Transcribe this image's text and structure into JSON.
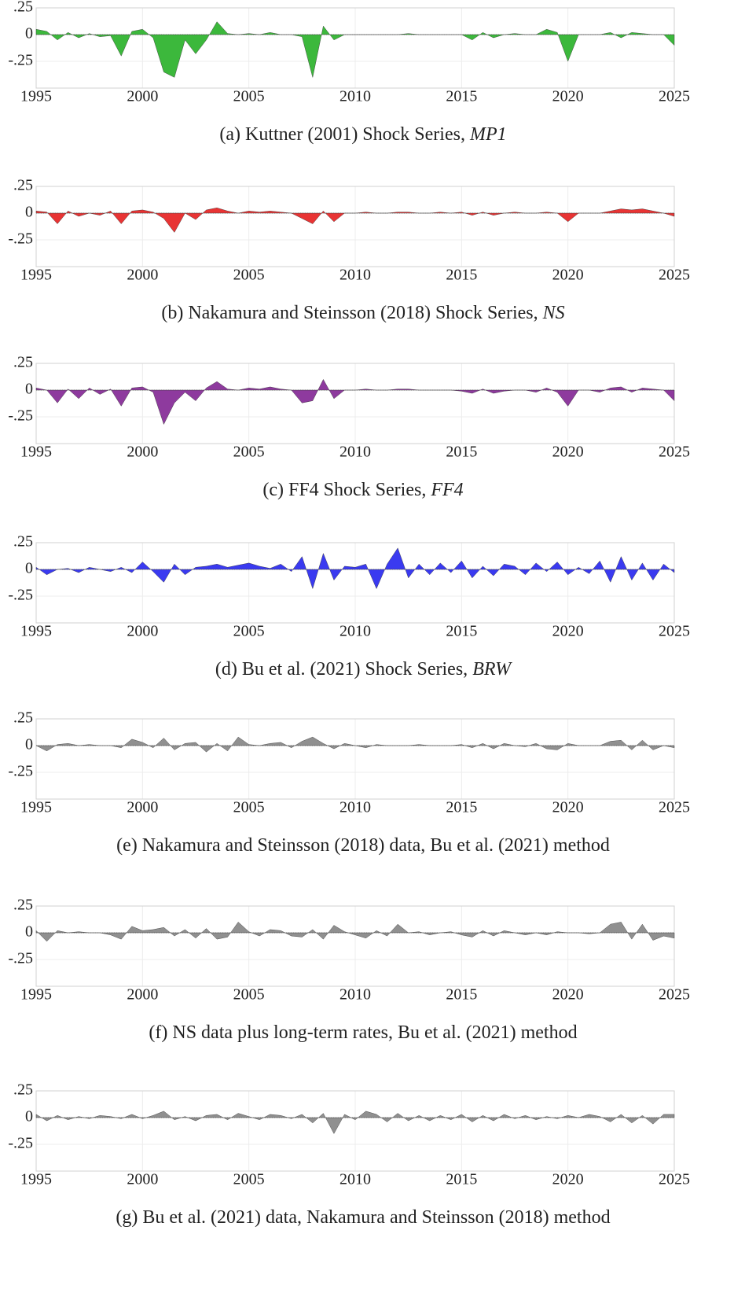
{
  "chart_data": [
    {
      "type": "area",
      "title": "(a) Kuttner (2001) Shock Series, ",
      "title_math": "MP1",
      "color": "#3cb83c",
      "grid": true,
      "xlim": [
        1995,
        2025
      ],
      "xticks": [
        1995,
        2000,
        2005,
        2010,
        2015,
        2020,
        2025
      ],
      "ylim": [
        -0.5,
        0.25
      ],
      "yticks": [
        {
          "value": 0.25,
          "label": ".25"
        },
        0,
        {
          "value": -0.25,
          "label": "-.25"
        }
      ],
      "x": [
        1995,
        1995.5,
        1996,
        1996.5,
        1997,
        1997.5,
        1998,
        1998.5,
        1999,
        1999.5,
        2000,
        2000.5,
        2001,
        2001.5,
        2002,
        2002.5,
        2003,
        2003.5,
        2004,
        2004.5,
        2005,
        2005.5,
        2006,
        2006.5,
        2007,
        2007.5,
        2008,
        2008.5,
        2009,
        2009.5,
        2010,
        2010.5,
        2011,
        2011.5,
        2012,
        2012.5,
        2013,
        2013.5,
        2014,
        2014.5,
        2015,
        2015.5,
        2016,
        2016.5,
        2017,
        2017.5,
        2018,
        2018.5,
        2019,
        2019.5,
        2020,
        2020.5,
        2021,
        2021.5,
        2022,
        2022.5,
        2023,
        2023.5,
        2024,
        2024.5,
        2025
      ],
      "values": [
        0.05,
        0.03,
        -0.05,
        0.02,
        -0.03,
        0.01,
        -0.02,
        -0.01,
        -0.2,
        0.03,
        0.05,
        -0.03,
        -0.35,
        -0.4,
        -0.05,
        -0.18,
        -0.05,
        0.12,
        0.01,
        0.0,
        0.01,
        0.0,
        0.02,
        0.0,
        0.0,
        -0.02,
        -0.4,
        0.08,
        -0.05,
        0.0,
        0.0,
        0.0,
        0.0,
        0.0,
        0.0,
        0.01,
        0.0,
        0.0,
        0.0,
        0.0,
        0.0,
        -0.05,
        0.02,
        -0.03,
        0.0,
        0.01,
        0.0,
        0.0,
        0.05,
        0.02,
        -0.25,
        0.0,
        0.0,
        0.0,
        0.02,
        -0.03,
        0.02,
        0.01,
        0.0,
        0.0,
        -0.1
      ]
    },
    {
      "type": "area",
      "title": "(b) Nakamura and Steinsson (2018) Shock Series, ",
      "title_math": "NS",
      "color": "#e83434",
      "grid": true,
      "xlim": [
        1995,
        2025
      ],
      "xticks": [
        1995,
        2000,
        2005,
        2010,
        2015,
        2020,
        2025
      ],
      "ylim": [
        -0.5,
        0.25
      ],
      "yticks": [
        {
          "value": 0.25,
          "label": ".25"
        },
        0,
        {
          "value": -0.25,
          "label": "-.25"
        }
      ],
      "x": [
        1995,
        1995.5,
        1996,
        1996.5,
        1997,
        1997.5,
        1998,
        1998.5,
        1999,
        1999.5,
        2000,
        2000.5,
        2001,
        2001.5,
        2002,
        2002.5,
        2003,
        2003.5,
        2004,
        2004.5,
        2005,
        2005.5,
        2006,
        2006.5,
        2007,
        2007.5,
        2008,
        2008.5,
        2009,
        2009.5,
        2010,
        2010.5,
        2011,
        2011.5,
        2012,
        2012.5,
        2013,
        2013.5,
        2014,
        2014.5,
        2015,
        2015.5,
        2016,
        2016.5,
        2017,
        2017.5,
        2018,
        2018.5,
        2019,
        2019.5,
        2020,
        2020.5,
        2021,
        2021.5,
        2022,
        2022.5,
        2023,
        2023.5,
        2024,
        2024.5,
        2025
      ],
      "values": [
        0.02,
        0.01,
        -0.1,
        0.02,
        -0.03,
        0.0,
        -0.02,
        0.02,
        -0.1,
        0.02,
        0.03,
        0.01,
        -0.05,
        -0.18,
        0.0,
        -0.06,
        0.03,
        0.05,
        0.02,
        0.0,
        0.02,
        0.01,
        0.02,
        0.01,
        0.0,
        -0.05,
        -0.1,
        0.02,
        -0.08,
        0.0,
        0.0,
        0.01,
        0.0,
        0.0,
        0.01,
        0.01,
        0.0,
        0.0,
        0.01,
        0.0,
        0.01,
        -0.02,
        0.01,
        -0.02,
        0.0,
        0.01,
        0.0,
        0.0,
        0.01,
        0.0,
        -0.08,
        0.0,
        0.0,
        0.0,
        0.02,
        0.04,
        0.03,
        0.04,
        0.02,
        0.0,
        -0.03
      ]
    },
    {
      "type": "area",
      "title": "(c) FF4 Shock Series, ",
      "title_math": "FF4",
      "color": "#8e3a9e",
      "grid": true,
      "xlim": [
        1995,
        2025
      ],
      "xticks": [
        1995,
        2000,
        2005,
        2010,
        2015,
        2020,
        2025
      ],
      "ylim": [
        -0.5,
        0.25
      ],
      "yticks": [
        {
          "value": 0.25,
          "label": ".25"
        },
        0,
        {
          "value": -0.25,
          "label": "-.25"
        }
      ],
      "x": [
        1995,
        1995.5,
        1996,
        1996.5,
        1997,
        1997.5,
        1998,
        1998.5,
        1999,
        1999.5,
        2000,
        2000.5,
        2001,
        2001.5,
        2002,
        2002.5,
        2003,
        2003.5,
        2004,
        2004.5,
        2005,
        2005.5,
        2006,
        2006.5,
        2007,
        2007.5,
        2008,
        2008.5,
        2009,
        2009.5,
        2010,
        2010.5,
        2011,
        2011.5,
        2012,
        2012.5,
        2013,
        2013.5,
        2014,
        2014.5,
        2015,
        2015.5,
        2016,
        2016.5,
        2017,
        2017.5,
        2018,
        2018.5,
        2019,
        2019.5,
        2020,
        2020.5,
        2021,
        2021.5,
        2022,
        2022.5,
        2023,
        2023.5,
        2024,
        2024.5,
        2025
      ],
      "values": [
        0.02,
        0.0,
        -0.12,
        0.01,
        -0.08,
        0.02,
        -0.04,
        0.01,
        -0.15,
        0.02,
        0.03,
        -0.02,
        -0.32,
        -0.12,
        -0.02,
        -0.1,
        0.02,
        0.08,
        0.01,
        0.0,
        0.02,
        0.01,
        0.03,
        0.01,
        0.0,
        -0.12,
        -0.1,
        0.1,
        -0.08,
        0.0,
        0.0,
        0.01,
        0.0,
        0.0,
        0.01,
        0.01,
        0.0,
        0.0,
        0.0,
        0.0,
        -0.01,
        -0.03,
        0.01,
        -0.03,
        -0.01,
        0.0,
        0.0,
        -0.02,
        0.02,
        -0.02,
        -0.15,
        0.0,
        0.0,
        -0.02,
        0.02,
        0.03,
        -0.02,
        0.02,
        0.01,
        0.0,
        -0.1
      ]
    },
    {
      "type": "area",
      "title": "(d) Bu et al. (2021) Shock Series, ",
      "title_math": "BRW",
      "color": "#3a3af0",
      "grid": true,
      "xlim": [
        1995,
        2025
      ],
      "xticks": [
        1995,
        2000,
        2005,
        2010,
        2015,
        2020,
        2025
      ],
      "ylim": [
        -0.5,
        0.25
      ],
      "yticks": [
        {
          "value": 0.25,
          "label": ".25"
        },
        0,
        {
          "value": -0.25,
          "label": "-.25"
        }
      ],
      "x": [
        1995,
        1995.5,
        1996,
        1996.5,
        1997,
        1997.5,
        1998,
        1998.5,
        1999,
        1999.5,
        2000,
        2000.5,
        2001,
        2001.5,
        2002,
        2002.5,
        2003,
        2003.5,
        2004,
        2004.5,
        2005,
        2005.5,
        2006,
        2006.5,
        2007,
        2007.5,
        2008,
        2008.5,
        2009,
        2009.5,
        2010,
        2010.5,
        2011,
        2011.5,
        2012,
        2012.5,
        2013,
        2013.5,
        2014,
        2014.5,
        2015,
        2015.5,
        2016,
        2016.5,
        2017,
        2017.5,
        2018,
        2018.5,
        2019,
        2019.5,
        2020,
        2020.5,
        2021,
        2021.5,
        2022,
        2022.5,
        2023,
        2023.5,
        2024,
        2024.5,
        2025
      ],
      "values": [
        0.02,
        -0.05,
        0.0,
        0.01,
        -0.03,
        0.02,
        0.0,
        -0.02,
        0.02,
        -0.03,
        0.07,
        -0.02,
        -0.12,
        0.05,
        -0.05,
        0.02,
        0.03,
        0.05,
        0.02,
        0.04,
        0.06,
        0.03,
        0.01,
        0.05,
        -0.02,
        0.12,
        -0.18,
        0.15,
        -0.1,
        0.03,
        0.02,
        0.05,
        -0.18,
        0.05,
        0.2,
        -0.08,
        0.05,
        -0.05,
        0.06,
        -0.03,
        0.08,
        -0.08,
        0.03,
        -0.06,
        0.05,
        0.03,
        -0.05,
        0.06,
        -0.02,
        0.07,
        -0.05,
        0.02,
        -0.04,
        0.08,
        -0.12,
        0.12,
        -0.1,
        0.06,
        -0.1,
        0.05,
        -0.03
      ]
    },
    {
      "type": "area",
      "title": "(e) Nakamura and Steinsson (2018) data, Bu et al. (2021) method",
      "color": "#909090",
      "grid": true,
      "xlim": [
        1995,
        2025
      ],
      "xticks": [
        1995,
        2000,
        2005,
        2010,
        2015,
        2020,
        2025
      ],
      "ylim": [
        -0.5,
        0.25
      ],
      "yticks": [
        {
          "value": 0.25,
          "label": ".25"
        },
        0,
        {
          "value": -0.25,
          "label": "-.25"
        }
      ],
      "x": [
        1995,
        1995.5,
        1996,
        1996.5,
        1997,
        1997.5,
        1998,
        1998.5,
        1999,
        1999.5,
        2000,
        2000.5,
        2001,
        2001.5,
        2002,
        2002.5,
        2003,
        2003.5,
        2004,
        2004.5,
        2005,
        2005.5,
        2006,
        2006.5,
        2007,
        2007.5,
        2008,
        2008.5,
        2009,
        2009.5,
        2010,
        2010.5,
        2011,
        2011.5,
        2012,
        2012.5,
        2013,
        2013.5,
        2014,
        2014.5,
        2015,
        2015.5,
        2016,
        2016.5,
        2017,
        2017.5,
        2018,
        2018.5,
        2019,
        2019.5,
        2020,
        2020.5,
        2021,
        2021.5,
        2022,
        2022.5,
        2023,
        2023.5,
        2024,
        2024.5,
        2025
      ],
      "values": [
        0.0,
        -0.05,
        0.01,
        0.02,
        0.0,
        0.01,
        0.0,
        0.0,
        -0.02,
        0.06,
        0.03,
        -0.02,
        0.07,
        -0.04,
        0.02,
        0.03,
        -0.06,
        0.02,
        -0.05,
        0.08,
        0.01,
        0.0,
        0.02,
        0.03,
        -0.02,
        0.04,
        0.08,
        0.02,
        -0.03,
        0.02,
        0.0,
        -0.02,
        0.01,
        0.0,
        0.0,
        0.0,
        0.01,
        0.0,
        0.0,
        0.0,
        0.01,
        -0.02,
        0.02,
        -0.03,
        0.02,
        0.0,
        -0.01,
        0.02,
        -0.03,
        -0.04,
        0.02,
        0.0,
        0.0,
        0.0,
        0.04,
        0.05,
        -0.04,
        0.05,
        -0.04,
        0.0,
        -0.02
      ]
    },
    {
      "type": "area",
      "title": "(f) NS data plus long-term rates, Bu et al. (2021) method",
      "color": "#909090",
      "grid": true,
      "xlim": [
        1995,
        2025
      ],
      "xticks": [
        1995,
        2000,
        2005,
        2010,
        2015,
        2020,
        2025
      ],
      "ylim": [
        -0.5,
        0.25
      ],
      "yticks": [
        {
          "value": 0.25,
          "label": ".25"
        },
        0,
        {
          "value": -0.25,
          "label": "-.25"
        }
      ],
      "x": [
        1995,
        1995.5,
        1996,
        1996.5,
        1997,
        1997.5,
        1998,
        1998.5,
        1999,
        1999.5,
        2000,
        2000.5,
        2001,
        2001.5,
        2002,
        2002.5,
        2003,
        2003.5,
        2004,
        2004.5,
        2005,
        2005.5,
        2006,
        2006.5,
        2007,
        2007.5,
        2008,
        2008.5,
        2009,
        2009.5,
        2010,
        2010.5,
        2011,
        2011.5,
        2012,
        2012.5,
        2013,
        2013.5,
        2014,
        2014.5,
        2015,
        2015.5,
        2016,
        2016.5,
        2017,
        2017.5,
        2018,
        2018.5,
        2019,
        2019.5,
        2020,
        2020.5,
        2021,
        2021.5,
        2022,
        2022.5,
        2023,
        2023.5,
        2024,
        2024.5,
        2025
      ],
      "values": [
        0.02,
        -0.08,
        0.02,
        0.0,
        0.01,
        0.0,
        0.0,
        -0.02,
        -0.06,
        0.06,
        0.02,
        0.03,
        0.05,
        -0.03,
        0.03,
        -0.05,
        0.04,
        -0.06,
        -0.04,
        0.1,
        0.01,
        -0.03,
        0.03,
        0.02,
        -0.03,
        -0.04,
        0.03,
        -0.06,
        0.07,
        0.01,
        -0.02,
        -0.05,
        0.02,
        -0.03,
        0.08,
        0.0,
        0.01,
        -0.02,
        0.0,
        0.01,
        -0.02,
        -0.04,
        0.02,
        -0.03,
        0.02,
        0.0,
        -0.02,
        0.0,
        -0.02,
        0.01,
        0.0,
        0.0,
        -0.01,
        0.0,
        0.08,
        0.1,
        -0.06,
        0.08,
        -0.07,
        -0.03,
        -0.05
      ]
    },
    {
      "type": "area",
      "title": "(g) Bu et al. (2021) data, Nakamura and Steinsson (2018) method",
      "color": "#909090",
      "grid": true,
      "xlim": [
        1995,
        2025
      ],
      "xticks": [
        1995,
        2000,
        2005,
        2010,
        2015,
        2020,
        2025
      ],
      "ylim": [
        -0.5,
        0.25
      ],
      "yticks": [
        {
          "value": 0.25,
          "label": ".25"
        },
        0,
        {
          "value": -0.25,
          "label": "-.25"
        }
      ],
      "x": [
        1995,
        1995.5,
        1996,
        1996.5,
        1997,
        1997.5,
        1998,
        1998.5,
        1999,
        1999.5,
        2000,
        2000.5,
        2001,
        2001.5,
        2002,
        2002.5,
        2003,
        2003.5,
        2004,
        2004.5,
        2005,
        2005.5,
        2006,
        2006.5,
        2007,
        2007.5,
        2008,
        2008.5,
        2009,
        2009.5,
        2010,
        2010.5,
        2011,
        2011.5,
        2012,
        2012.5,
        2013,
        2013.5,
        2014,
        2014.5,
        2015,
        2015.5,
        2016,
        2016.5,
        2017,
        2017.5,
        2018,
        2018.5,
        2019,
        2019.5,
        2020,
        2020.5,
        2021,
        2021.5,
        2022,
        2022.5,
        2023,
        2023.5,
        2024,
        2024.5,
        2025
      ],
      "values": [
        0.03,
        -0.03,
        0.02,
        -0.02,
        0.01,
        -0.01,
        0.02,
        0.01,
        -0.01,
        0.03,
        -0.01,
        0.02,
        0.06,
        -0.02,
        0.01,
        -0.03,
        0.02,
        0.03,
        -0.02,
        0.04,
        0.01,
        -0.02,
        0.03,
        0.02,
        -0.01,
        0.03,
        -0.05,
        0.04,
        -0.15,
        0.03,
        -0.02,
        0.06,
        0.03,
        -0.04,
        0.04,
        -0.03,
        0.02,
        -0.03,
        0.02,
        -0.02,
        0.03,
        -0.04,
        0.02,
        -0.03,
        0.03,
        -0.01,
        0.02,
        -0.02,
        0.01,
        -0.01,
        0.02,
        0.0,
        0.03,
        0.01,
        -0.04,
        0.03,
        -0.05,
        0.02,
        -0.06,
        0.03,
        0.03
      ]
    }
  ]
}
